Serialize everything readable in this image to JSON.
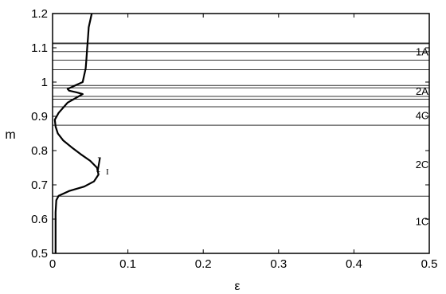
{
  "chart_data": {
    "type": "line",
    "xlabel": "ε",
    "ylabel": "m",
    "xlim": [
      0,
      0.5
    ],
    "ylim": [
      0.5,
      1.2
    ],
    "x_ticks": [
      "0",
      "0.1",
      "0.2",
      "0.3",
      "0.4",
      "0.5"
    ],
    "y_ticks": [
      "0.5",
      "0.6",
      "0.7",
      "0.8",
      "0.9",
      "1",
      "1.1",
      "1.2"
    ],
    "grid": false,
    "series": [
      {
        "name": "l_I",
        "label_main": "l",
        "label_sub": "I",
        "points": [
          [
            0.004,
            0.5
          ],
          [
            0.004,
            0.56
          ],
          [
            0.004,
            0.62
          ],
          [
            0.005,
            0.655
          ],
          [
            0.008,
            0.668
          ],
          [
            0.022,
            0.682
          ],
          [
            0.042,
            0.695
          ],
          [
            0.055,
            0.71
          ],
          [
            0.061,
            0.73
          ],
          [
            0.059,
            0.75
          ],
          [
            0.05,
            0.77
          ],
          [
            0.037,
            0.79
          ],
          [
            0.025,
            0.81
          ],
          [
            0.014,
            0.83
          ],
          [
            0.007,
            0.85
          ],
          [
            0.004,
            0.87
          ],
          [
            0.003,
            0.89
          ],
          [
            0.008,
            0.91
          ],
          [
            0.016,
            0.93
          ],
          [
            0.02,
            0.94
          ],
          [
            0.028,
            0.95
          ],
          [
            0.036,
            0.96
          ],
          [
            0.04,
            0.965
          ],
          [
            0.032,
            0.97
          ],
          [
            0.022,
            0.975
          ],
          [
            0.02,
            0.98
          ],
          [
            0.03,
            0.99
          ],
          [
            0.04,
            1.0
          ],
          [
            0.042,
            1.02
          ],
          [
            0.044,
            1.04
          ],
          [
            0.045,
            1.07
          ],
          [
            0.046,
            1.1
          ],
          [
            0.047,
            1.13
          ],
          [
            0.048,
            1.16
          ],
          [
            0.05,
            1.18
          ],
          [
            0.052,
            1.2
          ]
        ]
      }
    ],
    "horizontal_lines": [
      0.667,
      0.874,
      0.928,
      0.95,
      0.958,
      0.983,
      0.99,
      1.036,
      1.064,
      1.089,
      1.112,
      1.114
    ],
    "region_labels": [
      {
        "text": "1A",
        "y": 1.09
      },
      {
        "text": "2A",
        "y": 0.974
      },
      {
        "text": "4C",
        "y": 0.904
      },
      {
        "text": "2C",
        "y": 0.76
      },
      {
        "text": "1C",
        "y": 0.594
      }
    ]
  }
}
